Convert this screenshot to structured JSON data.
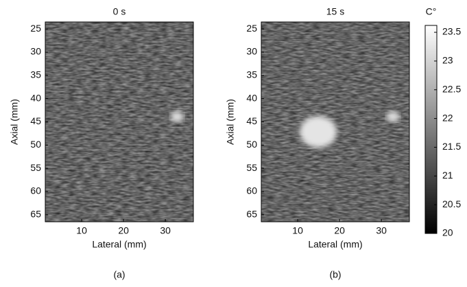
{
  "chart_data": [
    {
      "type": "image",
      "title": "0 s",
      "xlabel": "Lateral (mm)",
      "ylabel": "Axial (mm)",
      "caption": "(a)",
      "xlim": [
        1.3,
        36.7
      ],
      "ylim": [
        23.5,
        66.5
      ],
      "y_inverted": true,
      "xticks": [
        10,
        20,
        30
      ],
      "yticks": [
        25,
        30,
        35,
        40,
        45,
        50,
        55,
        60,
        65
      ]
    },
    {
      "type": "image",
      "title": "15 s",
      "xlabel": "Lateral (mm)",
      "ylabel": "Axial (mm)",
      "caption": "(b)",
      "xlim": [
        1.3,
        36.7
      ],
      "ylim": [
        23.5,
        66.5
      ],
      "y_inverted": true,
      "xticks": [
        10,
        20,
        30
      ],
      "yticks": [
        25,
        30,
        35,
        40,
        45,
        50,
        55,
        60,
        65
      ],
      "colorbar": {
        "label": "C°",
        "lim": [
          20,
          23.62
        ],
        "ticks": [
          20,
          20.5,
          21,
          21.5,
          22,
          22.5,
          23,
          23.5
        ]
      }
    }
  ]
}
